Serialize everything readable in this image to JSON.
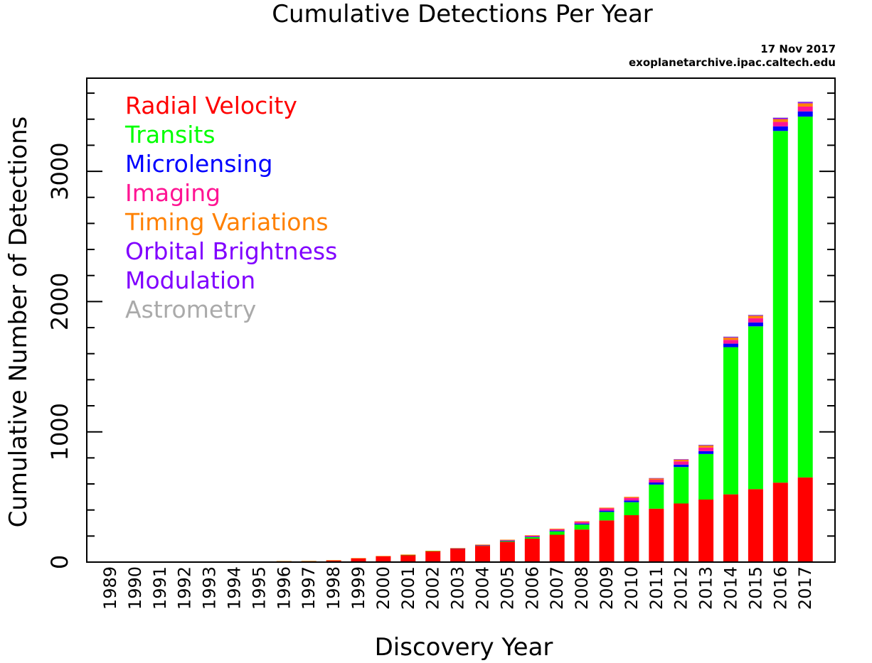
{
  "header": {
    "date": "17 Nov 2017",
    "source": "exoplanetarchive.ipac.caltech.edu"
  },
  "chart_data": {
    "type": "bar",
    "stacked": true,
    "title": "Cumulative Detections Per Year",
    "xlabel": "Discovery Year",
    "ylabel": "Cumulative Number of Detections",
    "ylim": [
      0,
      3715
    ],
    "yticks": [
      "0",
      "1000",
      "2000",
      "3000"
    ],
    "y_major_ticks": [
      0,
      1000,
      2000,
      3000
    ],
    "y_minor_step": 200,
    "legend_placement": "top-left",
    "grid": false,
    "categories": [
      "1989",
      "1990",
      "1991",
      "1992",
      "1993",
      "1994",
      "1995",
      "1996",
      "1997",
      "1998",
      "1999",
      "2000",
      "2001",
      "2002",
      "2003",
      "2004",
      "2005",
      "2006",
      "2007",
      "2008",
      "2009",
      "2010",
      "2011",
      "2012",
      "2013",
      "2014",
      "2015",
      "2016",
      "2017"
    ],
    "series": [
      {
        "name": "Radial Velocity",
        "color": "#ff0000",
        "values": [
          1,
          1,
          1,
          1,
          2,
          2,
          3,
          6,
          7,
          13,
          29,
          45,
          55,
          84,
          103,
          125,
          156,
          180,
          210,
          250,
          320,
          360,
          410,
          450,
          480,
          520,
          560,
          610,
          650
        ]
      },
      {
        "name": "Transits",
        "color": "#00ff00",
        "values": [
          0,
          0,
          0,
          0,
          0,
          0,
          0,
          0,
          0,
          0,
          0,
          0,
          1,
          1,
          1,
          3,
          5,
          11,
          26,
          38,
          65,
          100,
          185,
          280,
          350,
          1130,
          1250,
          2700,
          2770
        ]
      },
      {
        "name": "Microlensing",
        "color": "#0000ff",
        "values": [
          0,
          0,
          0,
          0,
          0,
          0,
          0,
          0,
          0,
          0,
          0,
          0,
          0,
          0,
          1,
          2,
          4,
          4,
          6,
          8,
          10,
          13,
          16,
          18,
          22,
          27,
          30,
          35,
          40
        ]
      },
      {
        "name": "Imaging",
        "color": "#ff1493",
        "values": [
          0,
          0,
          0,
          0,
          0,
          0,
          0,
          0,
          0,
          0,
          0,
          0,
          0,
          0,
          1,
          2,
          4,
          7,
          10,
          13,
          17,
          20,
          22,
          25,
          27,
          29,
          32,
          34,
          37
        ]
      },
      {
        "name": "Timing Variations",
        "color": "#ff8000",
        "values": [
          0,
          0,
          2,
          2,
          2,
          2,
          2,
          2,
          2,
          2,
          2,
          2,
          2,
          2,
          2,
          3,
          3,
          4,
          5,
          5,
          6,
          8,
          10,
          14,
          16,
          17,
          19,
          22,
          25
        ]
      },
      {
        "name": "Orbital Brightness",
        "color": "#8000ff",
        "values": [
          0,
          0,
          0,
          0,
          0,
          0,
          0,
          0,
          0,
          0,
          0,
          0,
          0,
          0,
          0,
          0,
          0,
          0,
          0,
          0,
          0,
          0,
          2,
          3,
          3,
          4,
          4,
          6,
          6
        ]
      },
      {
        "name": "Modulation",
        "color": "#8000ff",
        "values": [
          0,
          0,
          0,
          0,
          0,
          0,
          0,
          0,
          0,
          0,
          0,
          0,
          0,
          0,
          0,
          0,
          0,
          0,
          0,
          0,
          0,
          0,
          0,
          0,
          2,
          3,
          3,
          5,
          6
        ]
      },
      {
        "name": "Astrometry",
        "color": "#aaaaaa",
        "values": [
          0,
          0,
          0,
          0,
          0,
          0,
          0,
          0,
          0,
          0,
          0,
          0,
          0,
          0,
          0,
          0,
          0,
          0,
          0,
          0,
          0,
          0,
          0,
          0,
          1,
          1,
          1,
          1,
          1
        ]
      }
    ]
  }
}
